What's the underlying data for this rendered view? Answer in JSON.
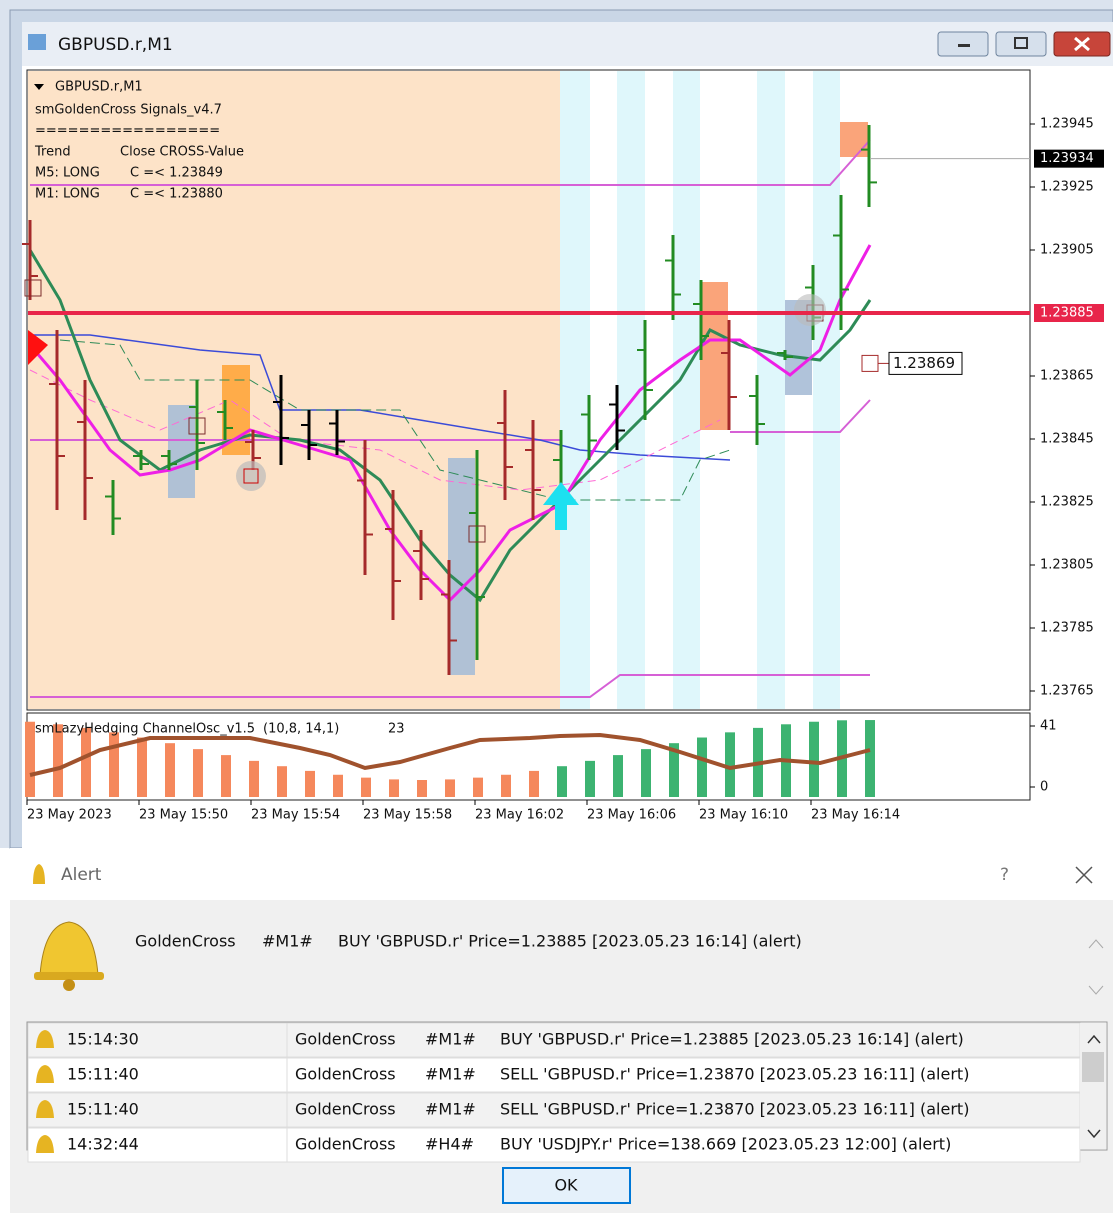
{
  "window": {
    "title": "GBPUSD.r,M1"
  },
  "chart": {
    "info": [
      "GBPUSD.r,M1",
      "smGoldenCross Signals_v4.7",
      "=================",
      "Trend",
      "Close CROSS-Value",
      "M5: LONG",
      "C =< 1.23849",
      "M1: LONG",
      "C =< 1.23880"
    ],
    "price_ticks": [
      1.23945,
      1.23925,
      1.23905,
      1.23865,
      1.23845,
      1.23825,
      1.23805,
      1.23785,
      1.23765
    ],
    "current_price": 1.23934,
    "line_price": 1.23885,
    "marker_price": 1.23869,
    "time_labels": [
      "23 May 2023",
      "23 May 15:50",
      "23 May 15:54",
      "23 May 15:58",
      "23 May 16:02",
      "23 May 16:06",
      "23 May 16:10",
      "23 May 16:14"
    ],
    "indicator": {
      "name": "smLazyHedging ChannelOsc_v1.5",
      "params": "(10,8, 14,1)",
      "value": 23
    },
    "osc_ticks": [
      41,
      0
    ]
  },
  "alert": {
    "title": "Alert",
    "help": "?",
    "message": {
      "name": "GoldenCross",
      "period": "#M1#",
      "text": "BUY 'GBPUSD.r' Price=1.23885 [2023.05.23 16:14] (alert)"
    },
    "rows": [
      [
        "15:14:30",
        "GoldenCross",
        "#M1#",
        "BUY 'GBPUSD.r' Price=1.23885 [2023.05.23 16:14] (alert)"
      ],
      [
        "15:11:40",
        "GoldenCross",
        "#M1#",
        "SELL 'GBPUSD.r' Price=1.23870 [2023.05.23 16:11] (alert)"
      ],
      [
        "15:11:40",
        "GoldenCross",
        "#M1#",
        "SELL 'GBPUSD.r' Price=1.23870 [2023.05.23 16:11] (alert)"
      ],
      [
        "14:32:44",
        "GoldenCross",
        "#H4#",
        "BUY 'USDJPY.r' Price=138.669 [2023.05.23 12:00] (alert)"
      ]
    ],
    "ok": "OK"
  }
}
